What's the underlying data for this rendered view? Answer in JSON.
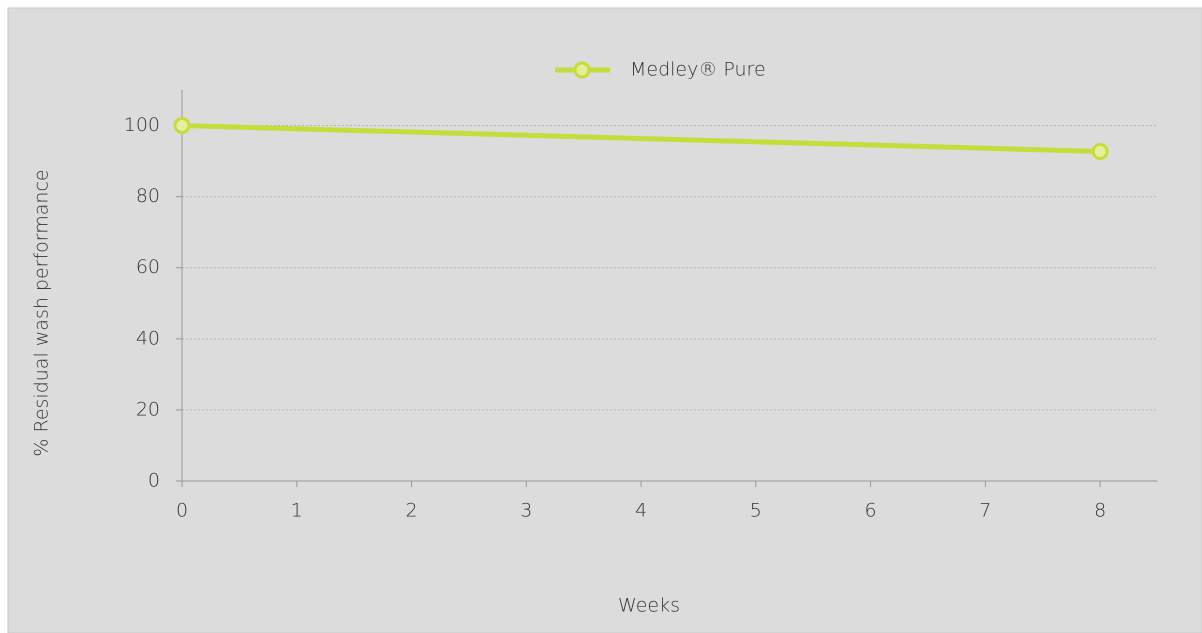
{
  "chart_data": {
    "type": "line",
    "x": [
      0,
      8
    ],
    "series": [
      {
        "name": "Medley® Pure",
        "color": "#c6dc3a",
        "values": [
          100,
          92.7
        ]
      }
    ],
    "xlabel": "Weeks",
    "ylabel": "% Residual wash performance",
    "xlim": [
      0,
      8.5
    ],
    "xticks": [
      0,
      1,
      2,
      3,
      4,
      5,
      6,
      7,
      8
    ],
    "ylim": [
      0,
      110
    ],
    "yticks": [
      0,
      20,
      40,
      60,
      80,
      100
    ],
    "grid": true,
    "legend": "top"
  }
}
